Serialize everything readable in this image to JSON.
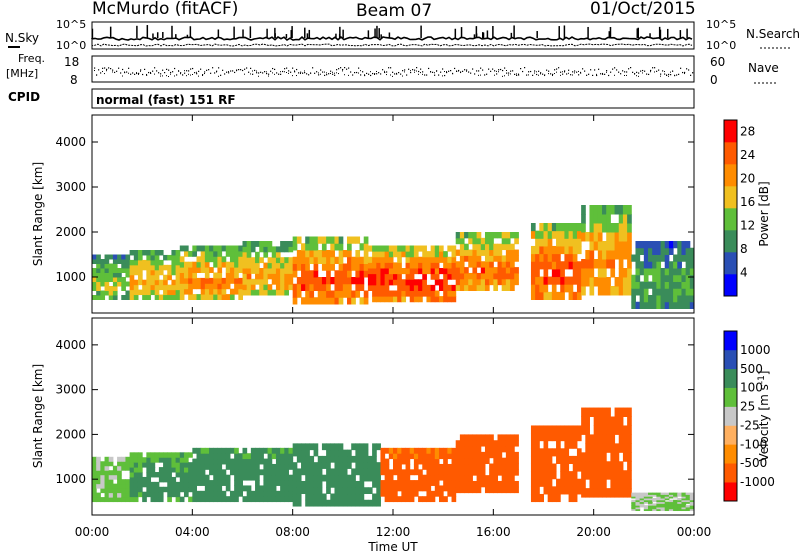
{
  "header": {
    "station": "McMurdo (fitACF)",
    "beam": "Beam 07",
    "date": "01/Oct/2015"
  },
  "noise_panel": {
    "left_label": "N.Sky",
    "right_label": "N.Search",
    "left_ticks": [
      "10^5",
      "10^0"
    ],
    "right_ticks": [
      "10^5",
      "10^0"
    ]
  },
  "freq_panel": {
    "left_label_line1": "Freq.",
    "left_label_line2": "[MHz]",
    "right_label": "Nave",
    "left_ticks": [
      "18",
      "8"
    ],
    "right_ticks": [
      "60",
      "0"
    ]
  },
  "cpid": {
    "label": "CPID",
    "text": "normal (fast) 151 RF"
  },
  "colors": {
    "power_scale": [
      "#0000ff",
      "#2a4fb4",
      "#3a8c5a",
      "#5fbf3a",
      "#f0c020",
      "#ff8c00",
      "#ff5a00",
      "#ff0000"
    ],
    "velocity_scale": [
      "#ff0000",
      "#ff5a00",
      "#ff8c00",
      "#ffb060",
      "#c8c8c8",
      "#5fbf3a",
      "#3a8c5a",
      "#2a4fb4",
      "#0000ff"
    ]
  },
  "chart_data": [
    {
      "type": "heatmap",
      "title": "Power",
      "xlabel": "",
      "ylabel": "Slant Range [km]",
      "yticks": [
        "1000",
        "2000",
        "3000",
        "4000"
      ],
      "ylim": [
        200,
        4600
      ],
      "xlim": [
        "00:00",
        "24:00"
      ],
      "colorbar": {
        "label": "Power [dB]",
        "ticks": [
          "4",
          "8",
          "12",
          "16",
          "20",
          "24",
          "28"
        ],
        "range": [
          0,
          30
        ]
      },
      "bands": [
        {
          "t_start": 0.0,
          "t_end": 1.5,
          "r_low": 500,
          "r_high": 1500,
          "value": 16
        },
        {
          "t_start": 1.5,
          "t_end": 3.5,
          "r_low": 500,
          "r_high": 1600,
          "value": 20
        },
        {
          "t_start": 3.5,
          "t_end": 6.0,
          "r_low": 500,
          "r_high": 1700,
          "value": 22
        },
        {
          "t_start": 6.0,
          "t_end": 8.0,
          "r_low": 600,
          "r_high": 1800,
          "value": 20
        },
        {
          "t_start": 8.0,
          "t_end": 11.0,
          "r_low": 400,
          "r_high": 1900,
          "value": 26
        },
        {
          "t_start": 11.0,
          "t_end": 14.5,
          "r_low": 450,
          "r_high": 1700,
          "value": 28
        },
        {
          "t_start": 14.5,
          "t_end": 17.0,
          "r_low": 700,
          "r_high": 2000,
          "value": 24
        },
        {
          "t_start": 17.5,
          "t_end": 19.5,
          "r_low": 500,
          "r_high": 2200,
          "value": 26
        },
        {
          "t_start": 19.5,
          "t_end": 21.5,
          "r_low": 600,
          "r_high": 2600,
          "value": 22
        },
        {
          "t_start": 21.5,
          "t_end": 24.0,
          "r_low": 300,
          "r_high": 1800,
          "value": 12
        }
      ]
    },
    {
      "type": "heatmap",
      "title": "Velocity",
      "xlabel": "Time UT",
      "ylabel": "Slant Range [km]",
      "xticks": [
        "00:00",
        "04:00",
        "08:00",
        "12:00",
        "16:00",
        "20:00",
        "00:00"
      ],
      "yticks": [
        "1000",
        "2000",
        "3000",
        "4000"
      ],
      "ylim": [
        200,
        4600
      ],
      "xlim": [
        "00:00",
        "24:00"
      ],
      "colorbar": {
        "label": "Velocity [m s^-1]",
        "ticks": [
          "1000",
          "500",
          "100",
          "25",
          "-25",
          "-100",
          "-500",
          "-1000"
        ]
      },
      "bands": [
        {
          "t_start": 0.0,
          "t_end": 1.5,
          "r_low": 500,
          "r_high": 1500,
          "value": 50
        },
        {
          "t_start": 1.5,
          "t_end": 4.0,
          "r_low": 500,
          "r_high": 1600,
          "value": 150
        },
        {
          "t_start": 4.0,
          "t_end": 8.0,
          "r_low": 500,
          "r_high": 1700,
          "value": 200
        },
        {
          "t_start": 8.0,
          "t_end": 11.5,
          "r_low": 400,
          "r_high": 1800,
          "value": 300
        },
        {
          "t_start": 11.5,
          "t_end": 14.5,
          "r_low": 500,
          "r_high": 1700,
          "value": -200
        },
        {
          "t_start": 14.5,
          "t_end": 17.0,
          "r_low": 700,
          "r_high": 2000,
          "value": -300
        },
        {
          "t_start": 17.5,
          "t_end": 19.5,
          "r_low": 500,
          "r_high": 2200,
          "value": -400
        },
        {
          "t_start": 19.5,
          "t_end": 21.5,
          "r_low": 600,
          "r_high": 2600,
          "value": -250
        },
        {
          "t_start": 21.5,
          "t_end": 24.0,
          "r_low": 300,
          "r_high": 700,
          "value": 40
        }
      ]
    }
  ]
}
